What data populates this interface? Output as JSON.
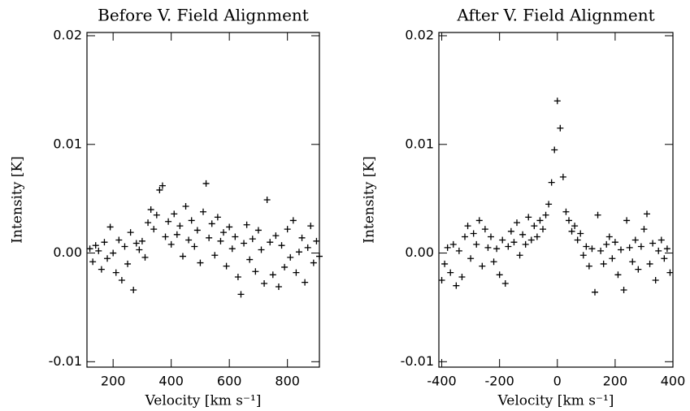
{
  "chart_data": [
    {
      "type": "scatter",
      "title": "Before V. Field Alignment",
      "x_label": "Velocity [km s⁻¹]",
      "y_label": "Intensity [K]",
      "color": "#000000",
      "xlim": [
        110,
        910
      ],
      "xticks": [
        200,
        400,
        600,
        800
      ],
      "ylim": [
        -0.0105,
        0.0203
      ],
      "yticks": [
        0.02,
        0.01,
        {
          "value": 0,
          "label": "0.00"
        },
        -0.01
      ],
      "x": [
        120,
        130,
        140,
        150,
        160,
        170,
        180,
        190,
        200,
        210,
        220,
        230,
        240,
        250,
        260,
        270,
        280,
        290,
        300,
        310,
        320,
        330,
        340,
        350,
        360,
        370,
        380,
        390,
        400,
        410,
        420,
        430,
        440,
        450,
        460,
        470,
        480,
        490,
        500,
        510,
        520,
        530,
        540,
        550,
        560,
        570,
        580,
        590,
        600,
        610,
        620,
        630,
        640,
        650,
        660,
        670,
        680,
        690,
        700,
        710,
        720,
        730,
        740,
        750,
        760,
        770,
        780,
        790,
        800,
        810,
        820,
        830,
        840,
        850,
        860,
        870,
        880,
        890,
        900,
        910
      ],
      "values": [
        0.0004,
        -0.0008,
        0.0007,
        0.0002,
        -0.0015,
        0.001,
        -0.0005,
        0.0024,
        0.0,
        -0.0018,
        0.0012,
        -0.0025,
        0.0006,
        -0.001,
        0.0019,
        -0.0034,
        0.0009,
        0.0003,
        0.0011,
        -0.0004,
        0.0028,
        0.004,
        0.0022,
        0.0035,
        0.0058,
        0.0062,
        0.0015,
        0.0029,
        0.0008,
        0.0036,
        0.0017,
        0.0025,
        -0.0003,
        0.0043,
        0.0012,
        0.003,
        0.0006,
        0.0021,
        -0.0009,
        0.0038,
        0.0064,
        0.0014,
        0.0027,
        -0.0002,
        0.0033,
        0.0011,
        0.0019,
        -0.0012,
        0.0024,
        0.0004,
        0.0015,
        -0.0022,
        -0.0038,
        0.0009,
        0.0026,
        -0.0006,
        0.0013,
        -0.0017,
        0.0021,
        0.0003,
        -0.0028,
        0.0049,
        0.001,
        -0.002,
        0.0016,
        -0.0031,
        0.0007,
        -0.0013,
        0.0022,
        -0.0004,
        0.003,
        -0.0018,
        0.0001,
        0.0014,
        -0.0027,
        0.0005,
        0.0025,
        -0.0009,
        0.0011,
        -0.0003
      ]
    },
    {
      "type": "scatter",
      "title": "After V. Field Alignment",
      "x_label": "Velocity [km s⁻¹]",
      "y_label": "Intensity [K]",
      "color": "#000000",
      "xlim": [
        -410,
        400
      ],
      "xticks": [
        -400,
        -200,
        0,
        200,
        400
      ],
      "ylim": [
        -0.0105,
        0.0203
      ],
      "yticks": [
        0.02,
        0.01,
        {
          "value": 0,
          "label": "0.00"
        },
        -0.01
      ],
      "x": [
        -400,
        -390,
        -380,
        -370,
        -360,
        -350,
        -340,
        -330,
        -320,
        -310,
        -300,
        -290,
        -280,
        -270,
        -260,
        -250,
        -240,
        -230,
        -220,
        -210,
        -200,
        -190,
        -180,
        -170,
        -160,
        -150,
        -140,
        -130,
        -120,
        -110,
        -100,
        -90,
        -80,
        -70,
        -60,
        -50,
        -40,
        -30,
        -20,
        -10,
        0,
        10,
        20,
        30,
        40,
        50,
        60,
        70,
        80,
        90,
        100,
        110,
        120,
        130,
        140,
        150,
        160,
        170,
        180,
        190,
        200,
        210,
        220,
        230,
        240,
        250,
        260,
        270,
        280,
        290,
        300,
        310,
        320,
        330,
        340,
        350,
        360,
        370,
        380,
        390
      ],
      "values": [
        -0.0025,
        -0.001,
        0.0005,
        -0.0018,
        0.0008,
        -0.003,
        0.0002,
        -0.0022,
        0.0015,
        0.0025,
        -0.0005,
        0.0018,
        0.0008,
        0.003,
        -0.0012,
        0.0022,
        0.0005,
        0.0015,
        -0.0008,
        0.0004,
        -0.002,
        0.0012,
        -0.0028,
        0.0006,
        0.002,
        0.001,
        0.0028,
        -0.0002,
        0.0017,
        0.0008,
        0.0033,
        0.0012,
        0.0025,
        0.0015,
        0.003,
        0.0022,
        0.0035,
        0.0045,
        0.0065,
        0.0095,
        0.014,
        0.0115,
        0.007,
        0.0038,
        0.003,
        0.002,
        0.0025,
        0.0012,
        0.0018,
        -0.0002,
        0.0006,
        -0.0012,
        0.0004,
        -0.0036,
        0.0035,
        0.0002,
        -0.001,
        0.0008,
        0.0015,
        -0.0005,
        0.001,
        -0.002,
        0.0003,
        -0.0034,
        0.003,
        0.0005,
        -0.0008,
        0.0012,
        -0.0015,
        0.0006,
        0.0022,
        0.0036,
        -0.001,
        0.0009,
        -0.0025,
        0.0002,
        0.0012,
        -0.0005,
        0.0004,
        -0.0018
      ]
    }
  ]
}
